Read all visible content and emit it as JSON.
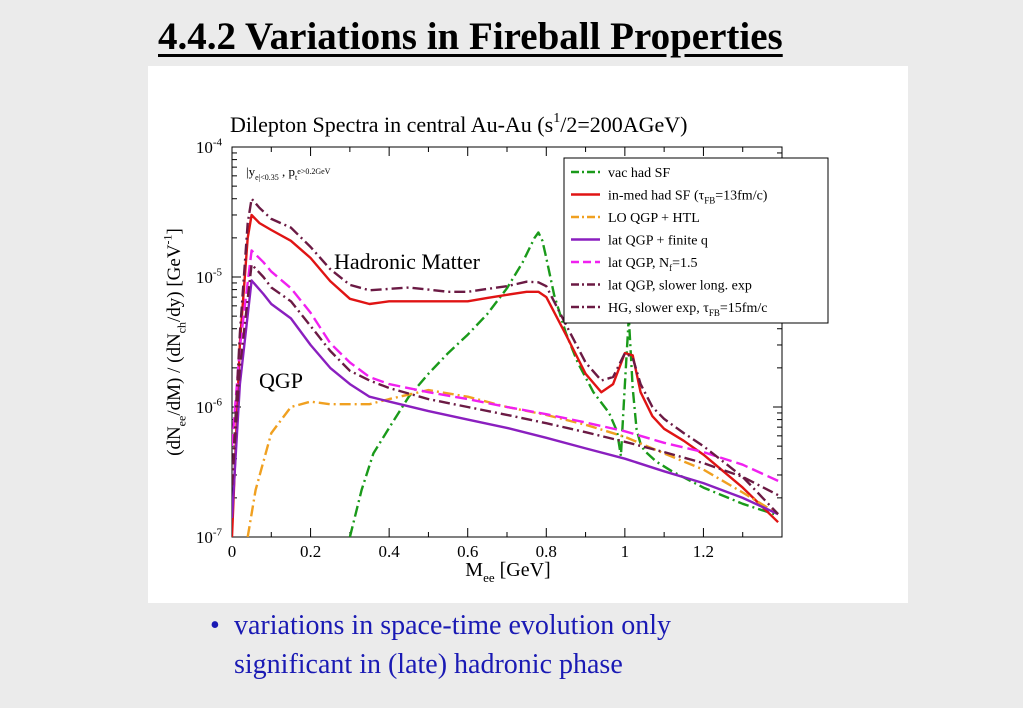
{
  "slide": {
    "title": "4.4.2  Variations in Fireball Properties",
    "bullet": "variations in space-time evolution only significant in (late) hadronic phase",
    "bullet_symbol": "•"
  },
  "chart_data": {
    "type": "line",
    "title": "Dilepton Spectra in central Au-Au (s^1/2=200AGeV)",
    "xlabel": "M_ee [GeV]",
    "ylabel": "(dN_ee/dM) / (dN_ch/dy)  [GeV^-1]",
    "xlim": [
      0,
      1.4
    ],
    "ylim": [
      1e-07,
      0.0001
    ],
    "log_y": true,
    "grid": false,
    "legend_position": "top-right",
    "x_ticks": [
      "0",
      "0.2",
      "0.4",
      "0.6",
      "0.8",
      "1",
      "1.2"
    ],
    "y_ticks": [
      "10^-7",
      "10^-6",
      "10^-5",
      "10^-4"
    ],
    "cuts_label": "|y_e|<0.35 ,  p_t^e>0.2GeV",
    "annotations": [
      "Hadronic Matter",
      "QGP"
    ],
    "series": [
      {
        "name": "vac had SF",
        "color": "#1a9a1a",
        "dash": "dashdot",
        "x": [
          0.3,
          0.33,
          0.36,
          0.4,
          0.45,
          0.5,
          0.55,
          0.6,
          0.65,
          0.7,
          0.74,
          0.77,
          0.78,
          0.79,
          0.8,
          0.82,
          0.85,
          0.88,
          0.92,
          0.96,
          0.98,
          0.99,
          1.0,
          1.01,
          1.02,
          1.03,
          1.04,
          1.05,
          1.08,
          1.12,
          1.2,
          1.3,
          1.38
        ],
        "y": [
          1e-07,
          2.3e-07,
          4.4e-07,
          6.9e-07,
          1.2e-06,
          1.8e-06,
          2.6e-06,
          3.6e-06,
          5.2e-06,
          8.2e-06,
          1.3e-05,
          2e-05,
          2.2e-05,
          1.9e-05,
          1.4e-05,
          7.3e-06,
          3.7e-06,
          2.2e-06,
          1.3e-06,
          9e-07,
          6.5e-07,
          4.2e-07,
          1.5e-06,
          4.9e-06,
          1.4e-06,
          6.7e-07,
          5.2e-07,
          4.6e-07,
          3.8e-07,
          3.2e-07,
          2.4e-07,
          1.8e-07,
          1.5e-07
        ]
      },
      {
        "name": "in-med had SF (τ_FB=13fm/c)",
        "color": "#e01414",
        "dash": "solid",
        "x": [
          0,
          0.02,
          0.04,
          0.05,
          0.07,
          0.1,
          0.15,
          0.2,
          0.25,
          0.3,
          0.35,
          0.4,
          0.45,
          0.5,
          0.55,
          0.6,
          0.65,
          0.7,
          0.75,
          0.78,
          0.8,
          0.85,
          0.9,
          0.94,
          0.97,
          1.0,
          1.02,
          1.04,
          1.07,
          1.1,
          1.15,
          1.2,
          1.3,
          1.39
        ],
        "y": [
          1e-07,
          3.1e-06,
          2e-05,
          3e-05,
          2.6e-05,
          2.3e-05,
          1.9e-05,
          1.4e-05,
          9.3e-06,
          6.8e-06,
          6.2e-06,
          6.5e-06,
          6.5e-06,
          6.5e-06,
          6.5e-06,
          6.5e-06,
          6.9e-06,
          7.3e-06,
          7.7e-06,
          7.7e-06,
          7e-06,
          3.6e-06,
          1.8e-06,
          1.3e-06,
          1.5e-06,
          2.6e-06,
          2.5e-06,
          1.3e-06,
          8.5e-07,
          6.8e-07,
          5.5e-07,
          4.3e-07,
          2.4e-07,
          1.3e-07
        ]
      },
      {
        "name": "LO QGP + HTL",
        "color": "#f0a020",
        "dash": "dashdot",
        "x": [
          0.04,
          0.06,
          0.1,
          0.15,
          0.2,
          0.25,
          0.3,
          0.35,
          0.4,
          0.5,
          0.6,
          0.7,
          0.8,
          0.9,
          1.0,
          1.1,
          1.2,
          1.3,
          1.39
        ],
        "y": [
          1e-07,
          2.3e-07,
          6.3e-07,
          1e-06,
          1.1e-06,
          1.05e-06,
          1.05e-06,
          1.05e-06,
          1.15e-06,
          1.35e-06,
          1.2e-06,
          1e-06,
          8.7e-07,
          7.3e-07,
          5.9e-07,
          4.4e-07,
          3.3e-07,
          2.2e-07,
          1.5e-07
        ]
      },
      {
        "name": "lat QGP + finite q",
        "color": "#8a1fbf",
        "dash": "solid",
        "x": [
          0,
          0.02,
          0.05,
          0.08,
          0.1,
          0.15,
          0.2,
          0.25,
          0.3,
          0.35,
          0.4,
          0.5,
          0.6,
          0.7,
          0.8,
          0.9,
          1.0,
          1.1,
          1.2,
          1.3,
          1.39
        ],
        "y": [
          1.4e-07,
          1.5e-06,
          9.4e-06,
          7.4e-06,
          6.2e-06,
          4.8e-06,
          3e-06,
          2e-06,
          1.5e-06,
          1.2e-06,
          1.1e-06,
          9.3e-07,
          8e-07,
          6.9e-07,
          5.8e-07,
          4.8e-07,
          4e-07,
          3.2e-07,
          2.6e-07,
          2e-07,
          1.5e-07
        ]
      },
      {
        "name": "lat QGP, N_f=1.5",
        "color": "#f020f0",
        "dash": "dashed",
        "x": [
          0,
          0.02,
          0.05,
          0.08,
          0.1,
          0.15,
          0.2,
          0.25,
          0.3,
          0.35,
          0.4,
          0.5,
          0.6,
          0.7,
          0.8,
          0.9,
          1.0,
          1.1,
          1.2,
          1.3,
          1.39
        ],
        "y": [
          5e-07,
          2.9e-06,
          1.6e-05,
          1.3e-05,
          1.1e-05,
          8.2e-06,
          5.3e-06,
          3.1e-06,
          2.2e-06,
          1.7e-06,
          1.5e-06,
          1.3e-06,
          1.15e-06,
          1e-06,
          8.8e-07,
          7.6e-07,
          6.5e-07,
          5.3e-07,
          4.5e-07,
          3.6e-07,
          2.7e-07
        ]
      },
      {
        "name": "lat QGP, slower long. exp",
        "color": "#6b1a44",
        "dash": "dashdot",
        "x": [
          0,
          0.02,
          0.05,
          0.08,
          0.1,
          0.15,
          0.2,
          0.25,
          0.3,
          0.35,
          0.4,
          0.5,
          0.6,
          0.7,
          0.8,
          0.9,
          1.0,
          1.1,
          1.2,
          1.3,
          1.39
        ],
        "y": [
          2.5e-07,
          2e-06,
          1.25e-05,
          1e-05,
          8.3e-06,
          6.5e-06,
          4.2e-06,
          2.7e-06,
          1.9e-06,
          1.6e-06,
          1.4e-06,
          1.15e-06,
          1e-06,
          8.7e-07,
          7.5e-07,
          6.4e-07,
          5.4e-07,
          4.5e-07,
          3.7e-07,
          2.9e-07,
          2.1e-07
        ]
      },
      {
        "name": "HG, slower exp, τ_FB=15fm/c",
        "color": "#6b1a44",
        "dash": "dashdot",
        "x": [
          0,
          0.02,
          0.04,
          0.05,
          0.07,
          0.1,
          0.15,
          0.2,
          0.25,
          0.3,
          0.35,
          0.4,
          0.45,
          0.5,
          0.55,
          0.6,
          0.65,
          0.7,
          0.75,
          0.78,
          0.8,
          0.85,
          0.9,
          0.94,
          0.97,
          1.0,
          1.02,
          1.04,
          1.07,
          1.1,
          1.15,
          1.2,
          1.3,
          1.39
        ],
        "y": [
          2.5e-07,
          3.7e-06,
          2.6e-05,
          4e-05,
          3.4e-05,
          2.8e-05,
          2.4e-05,
          1.7e-05,
          1.15e-05,
          8.7e-06,
          7.9e-06,
          8.1e-06,
          8.3e-06,
          8e-06,
          7.7e-06,
          7.7e-06,
          8.1e-06,
          8.5e-06,
          9.2e-06,
          9.1e-06,
          8.5e-06,
          4.3e-06,
          2.2e-06,
          1.6e-06,
          1.7e-06,
          2.6e-06,
          2.4e-06,
          1.5e-06,
          1e-06,
          8.1e-07,
          6.3e-07,
          5e-07,
          2.9e-07,
          1.5e-07
        ]
      }
    ]
  }
}
